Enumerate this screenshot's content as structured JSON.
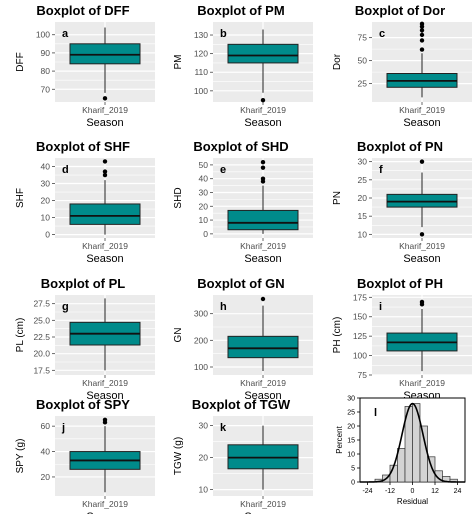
{
  "figure": {
    "season_label": "Season",
    "category": "Kharif_2019"
  },
  "colors": {
    "box_fill": "#008b8b",
    "panel_bg": "#ebebeb",
    "grid": "#ffffff",
    "hist_bar": "#d3d3d3",
    "curve": "#000000"
  },
  "chart_data": [
    {
      "type": "boxplot",
      "id": "dff",
      "letter": "a",
      "title": "Boxplot of DFF",
      "ylabel": "DFF",
      "xlabel": "Season",
      "categories": [
        "Kharif_2019"
      ],
      "ylim": [
        63,
        107
      ],
      "yticks": [
        70,
        80,
        90,
        100
      ],
      "stats": {
        "whisker_low": 68,
        "q1": 84,
        "median": 89,
        "q3": 95,
        "whisker_high": 104
      },
      "outliers": [
        65
      ]
    },
    {
      "type": "boxplot",
      "id": "pm",
      "letter": "b",
      "title": "Boxplot of PM",
      "ylabel": "PM",
      "xlabel": "Season",
      "categories": [
        "Kharif_2019"
      ],
      "ylim": [
        94,
        137
      ],
      "yticks": [
        100,
        110,
        120,
        130
      ],
      "stats": {
        "whisker_low": 99,
        "q1": 115,
        "median": 119,
        "q3": 125,
        "whisker_high": 133
      },
      "outliers": [
        95
      ]
    },
    {
      "type": "boxplot",
      "id": "dor",
      "letter": "c",
      "title": "Boxplot of Dor",
      "ylabel": "Dor",
      "xlabel": "Season",
      "categories": [
        "Kharif_2019"
      ],
      "ylim": [
        5,
        92
      ],
      "yticks": [
        25,
        50,
        75
      ],
      "stats": {
        "whisker_low": 10,
        "q1": 21,
        "median": 28,
        "q3": 36,
        "whisker_high": 58
      },
      "outliers": [
        62,
        72,
        78,
        83,
        87,
        90
      ]
    },
    {
      "type": "boxplot",
      "id": "shf",
      "letter": "d",
      "title": "Boxplot of SHF",
      "ylabel": "SHF",
      "xlabel": "Season",
      "categories": [
        "Kharif_2019"
      ],
      "ylim": [
        -2,
        45
      ],
      "yticks": [
        0,
        10,
        20,
        30,
        40
      ],
      "stats": {
        "whisker_low": 0,
        "q1": 6,
        "median": 11,
        "q3": 18,
        "whisker_high": 32
      },
      "outliers": [
        35,
        37,
        43
      ]
    },
    {
      "type": "boxplot",
      "id": "shd",
      "letter": "e",
      "title": "Boxplot of SHD",
      "ylabel": "SHD",
      "xlabel": "Season",
      "categories": [
        "Kharif_2019"
      ],
      "ylim": [
        -3,
        55
      ],
      "yticks": [
        0,
        10,
        20,
        30,
        40,
        50
      ],
      "stats": {
        "whisker_low": 0,
        "q1": 3,
        "median": 8,
        "q3": 17,
        "whisker_high": 35
      },
      "outliers": [
        38,
        40,
        48,
        52
      ]
    },
    {
      "type": "boxplot",
      "id": "pn",
      "letter": "f",
      "title": "Boxplot of PN",
      "ylabel": "PN",
      "xlabel": "Season",
      "categories": [
        "Kharif_2019"
      ],
      "ylim": [
        9,
        31
      ],
      "yticks": [
        10,
        15,
        20,
        25,
        30
      ],
      "stats": {
        "whisker_low": 12,
        "q1": 17.5,
        "median": 19,
        "q3": 21,
        "whisker_high": 27
      },
      "outliers": [
        10,
        30
      ]
    },
    {
      "type": "boxplot",
      "id": "pl",
      "letter": "g",
      "title": "Boxplot of PL",
      "ylabel": "PL (cm)",
      "xlabel": "Season",
      "categories": [
        "Kharif_2019"
      ],
      "ylim": [
        16.8,
        28.8
      ],
      "yticks": [
        17.5,
        20.0,
        22.5,
        25.0,
        27.5
      ],
      "ytick_labels": [
        "17.5",
        "20.0",
        "22.5",
        "25.0",
        "27.5"
      ],
      "stats": {
        "whisker_low": 17.5,
        "q1": 21.3,
        "median": 23,
        "q3": 24.7,
        "whisker_high": 28.3
      },
      "outliers": []
    },
    {
      "type": "boxplot",
      "id": "gn",
      "letter": "h",
      "title": "Boxplot of GN",
      "ylabel": "GN",
      "xlabel": "Season",
      "categories": [
        "Kharif_2019"
      ],
      "ylim": [
        70,
        370
      ],
      "yticks": [
        100,
        200,
        300
      ],
      "stats": {
        "whisker_low": 85,
        "q1": 135,
        "median": 170,
        "q3": 215,
        "whisker_high": 330
      },
      "outliers": [
        355
      ]
    },
    {
      "type": "boxplot",
      "id": "ph",
      "letter": "i",
      "title": "Boxplot of PH",
      "ylabel": "PH (cm)",
      "xlabel": "Season",
      "categories": [
        "Kharif_2019"
      ],
      "ylim": [
        75,
        178
      ],
      "yticks": [
        75,
        100,
        125,
        150,
        175
      ],
      "stats": {
        "whisker_low": 80,
        "q1": 106,
        "median": 117,
        "q3": 129,
        "whisker_high": 160
      },
      "outliers": [
        166,
        169
      ]
    },
    {
      "type": "boxplot",
      "id": "spy",
      "letter": "j",
      "title": "Boxplot of SPY",
      "ylabel": "SPY (g)",
      "xlabel": "Season",
      "categories": [
        "Kharif_2019"
      ],
      "ylim": [
        5,
        68
      ],
      "yticks": [
        20,
        40,
        60
      ],
      "stats": {
        "whisker_low": 8,
        "q1": 26,
        "median": 33,
        "q3": 40,
        "whisker_high": 60
      },
      "outliers": [
        63,
        65
      ]
    },
    {
      "type": "boxplot",
      "id": "tgw",
      "letter": "k",
      "title": "Boxplot of TGW",
      "ylabel": "TGW (g)",
      "xlabel": "Season",
      "categories": [
        "Kharif_2019"
      ],
      "ylim": [
        8,
        33
      ],
      "yticks": [
        10,
        20,
        30
      ],
      "stats": {
        "whisker_low": 10,
        "q1": 16.5,
        "median": 20,
        "q3": 24,
        "whisker_high": 30
      },
      "outliers": []
    },
    {
      "type": "histogram",
      "id": "residual",
      "letter": "l",
      "title": "",
      "xlabel": "Residual",
      "ylabel": "Percent",
      "xlim": [
        -28,
        28
      ],
      "ylim": [
        0,
        30
      ],
      "xticks": [
        -24,
        -12,
        0,
        12,
        24
      ],
      "yticks": [
        0,
        5,
        10,
        15,
        20,
        25,
        30
      ],
      "bin_width": 4,
      "bins": [
        {
          "left": -20,
          "percent": 1
        },
        {
          "left": -16,
          "percent": 2.5
        },
        {
          "left": -12,
          "percent": 6
        },
        {
          "left": -8,
          "percent": 12
        },
        {
          "left": -4,
          "percent": 27
        },
        {
          "left": 0,
          "percent": 28
        },
        {
          "left": 4,
          "percent": 20
        },
        {
          "left": 8,
          "percent": 9
        },
        {
          "left": 12,
          "percent": 4
        },
        {
          "left": 16,
          "percent": 2
        },
        {
          "left": 20,
          "percent": 1
        }
      ],
      "normal_curve": {
        "mean": 0,
        "sd": 5.6,
        "peak_percent": 28
      }
    }
  ]
}
